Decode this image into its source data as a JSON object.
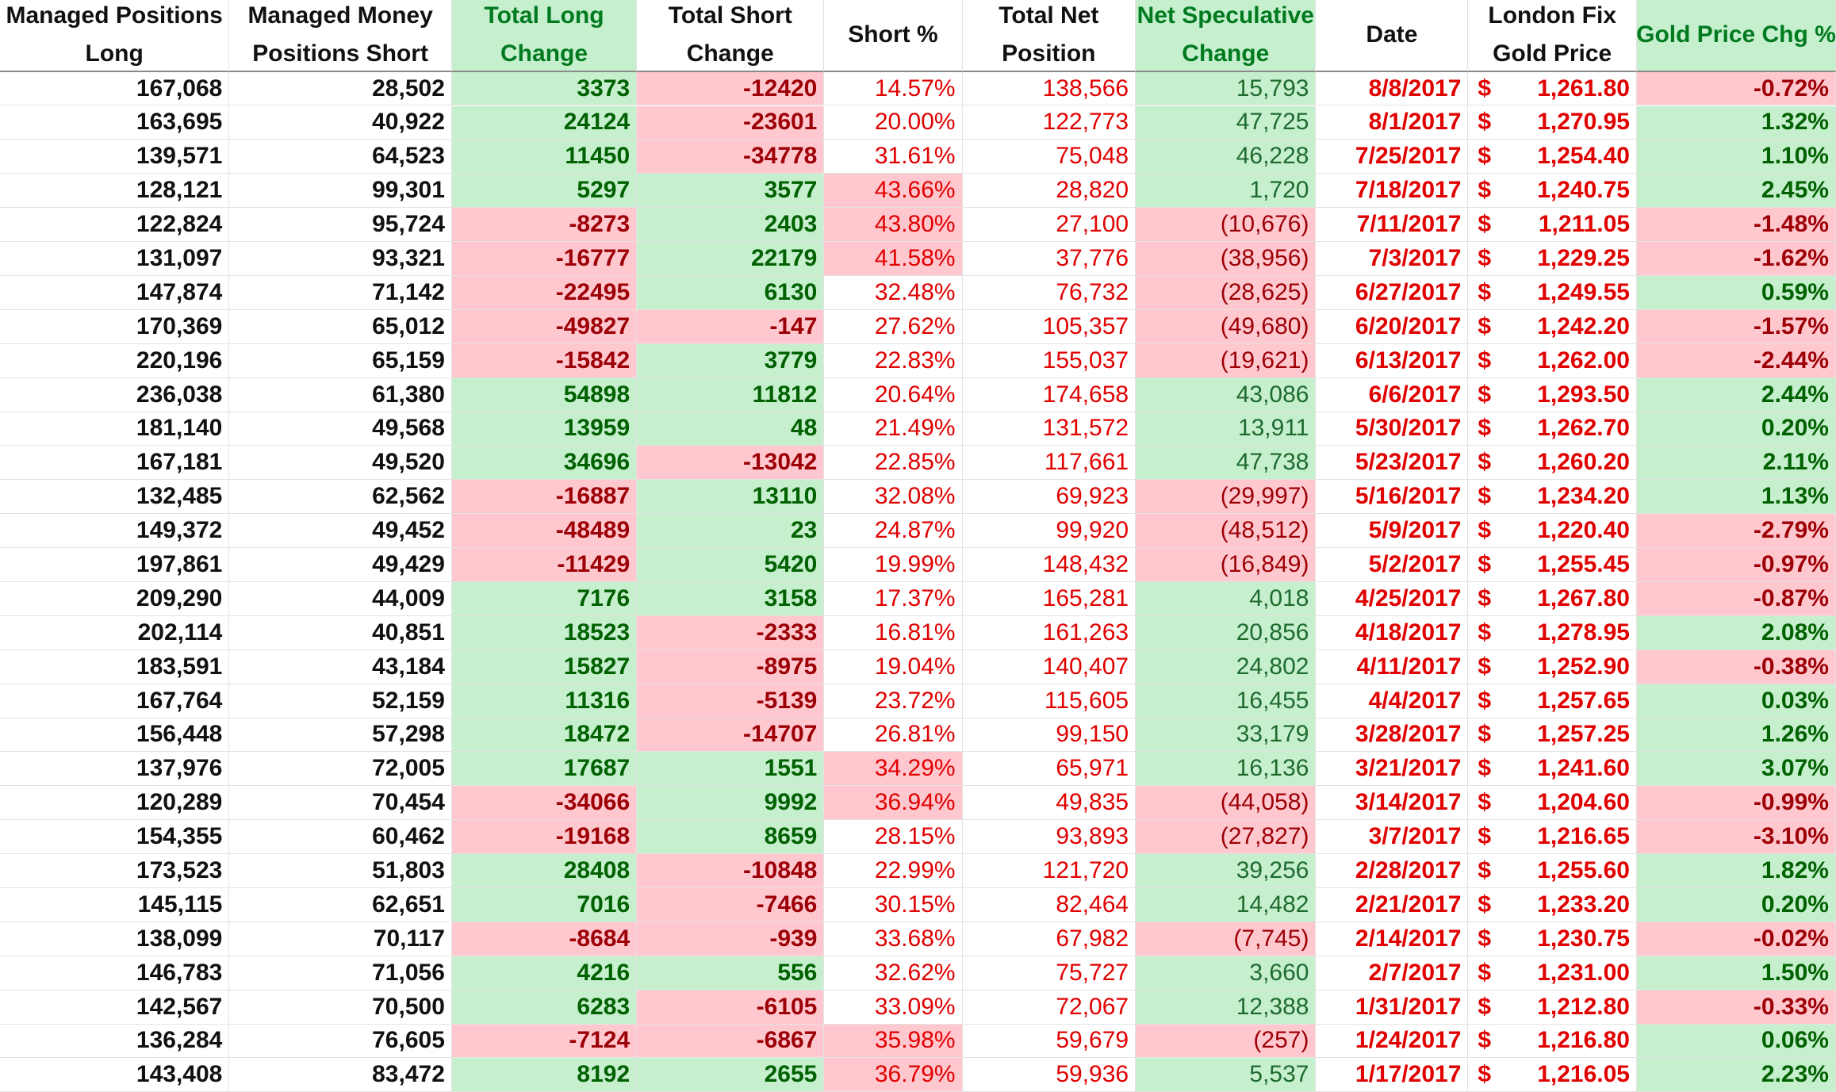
{
  "headers": [
    [
      "Managed Positions",
      "Long"
    ],
    [
      "Managed Money",
      "Positions Short"
    ],
    [
      "Total Long",
      "Change"
    ],
    [
      "Total Short",
      "Change"
    ],
    [
      "Short %"
    ],
    [
      "Total Net",
      "Position"
    ],
    [
      "Net Speculative",
      "Change"
    ],
    [
      "Date"
    ],
    [
      "London Fix",
      "Gold Price"
    ],
    [
      "Gold Price Chg %"
    ]
  ],
  "header_green": [
    false,
    false,
    true,
    false,
    false,
    false,
    true,
    false,
    false,
    true
  ],
  "currency_symbol": "$",
  "colors": {
    "green_fill": "#c6efce",
    "green_text": "#006100",
    "red_fill": "#ffc7ce",
    "red_text": "#9c0006",
    "red_font": "#e10000"
  },
  "rows": [
    {
      "long": "167,068",
      "short": "28,502",
      "long_chg": "3373",
      "short_chg": "-12420",
      "short_pct": "14.57%",
      "net": "138,566",
      "spec_chg": "15,793",
      "date": "8/8/2017",
      "price": "1,261.80",
      "price_chg": "-0.72%",
      "pct_hl": false
    },
    {
      "long": "163,695",
      "short": "40,922",
      "long_chg": "24124",
      "short_chg": "-23601",
      "short_pct": "20.00%",
      "net": "122,773",
      "spec_chg": "47,725",
      "date": "8/1/2017",
      "price": "1,270.95",
      "price_chg": "1.32%",
      "pct_hl": false
    },
    {
      "long": "139,571",
      "short": "64,523",
      "long_chg": "11450",
      "short_chg": "-34778",
      "short_pct": "31.61%",
      "net": "75,048",
      "spec_chg": "46,228",
      "date": "7/25/2017",
      "price": "1,254.40",
      "price_chg": "1.10%",
      "pct_hl": false
    },
    {
      "long": "128,121",
      "short": "99,301",
      "long_chg": "5297",
      "short_chg": "3577",
      "short_pct": "43.66%",
      "net": "28,820",
      "spec_chg": "1,720",
      "date": "7/18/2017",
      "price": "1,240.75",
      "price_chg": "2.45%",
      "pct_hl": true
    },
    {
      "long": "122,824",
      "short": "95,724",
      "long_chg": "-8273",
      "short_chg": "2403",
      "short_pct": "43.80%",
      "net": "27,100",
      "spec_chg": "(10,676)",
      "date": "7/11/2017",
      "price": "1,211.05",
      "price_chg": "-1.48%",
      "pct_hl": true
    },
    {
      "long": "131,097",
      "short": "93,321",
      "long_chg": "-16777",
      "short_chg": "22179",
      "short_pct": "41.58%",
      "net": "37,776",
      "spec_chg": "(38,956)",
      "date": "7/3/2017",
      "price": "1,229.25",
      "price_chg": "-1.62%",
      "pct_hl": true
    },
    {
      "long": "147,874",
      "short": "71,142",
      "long_chg": "-22495",
      "short_chg": "6130",
      "short_pct": "32.48%",
      "net": "76,732",
      "spec_chg": "(28,625)",
      "date": "6/27/2017",
      "price": "1,249.55",
      "price_chg": "0.59%",
      "pct_hl": false
    },
    {
      "long": "170,369",
      "short": "65,012",
      "long_chg": "-49827",
      "short_chg": "-147",
      "short_pct": "27.62%",
      "net": "105,357",
      "spec_chg": "(49,680)",
      "date": "6/20/2017",
      "price": "1,242.20",
      "price_chg": "-1.57%",
      "pct_hl": false
    },
    {
      "long": "220,196",
      "short": "65,159",
      "long_chg": "-15842",
      "short_chg": "3779",
      "short_pct": "22.83%",
      "net": "155,037",
      "spec_chg": "(19,621)",
      "date": "6/13/2017",
      "price": "1,262.00",
      "price_chg": "-2.44%",
      "pct_hl": false
    },
    {
      "long": "236,038",
      "short": "61,380",
      "long_chg": "54898",
      "short_chg": "11812",
      "short_pct": "20.64%",
      "net": "174,658",
      "spec_chg": "43,086",
      "date": "6/6/2017",
      "price": "1,293.50",
      "price_chg": "2.44%",
      "pct_hl": false
    },
    {
      "long": "181,140",
      "short": "49,568",
      "long_chg": "13959",
      "short_chg": "48",
      "short_pct": "21.49%",
      "net": "131,572",
      "spec_chg": "13,911",
      "date": "5/30/2017",
      "price": "1,262.70",
      "price_chg": "0.20%",
      "pct_hl": false
    },
    {
      "long": "167,181",
      "short": "49,520",
      "long_chg": "34696",
      "short_chg": "-13042",
      "short_pct": "22.85%",
      "net": "117,661",
      "spec_chg": "47,738",
      "date": "5/23/2017",
      "price": "1,260.20",
      "price_chg": "2.11%",
      "pct_hl": false
    },
    {
      "long": "132,485",
      "short": "62,562",
      "long_chg": "-16887",
      "short_chg": "13110",
      "short_pct": "32.08%",
      "net": "69,923",
      "spec_chg": "(29,997)",
      "date": "5/16/2017",
      "price": "1,234.20",
      "price_chg": "1.13%",
      "pct_hl": false
    },
    {
      "long": "149,372",
      "short": "49,452",
      "long_chg": "-48489",
      "short_chg": "23",
      "short_pct": "24.87%",
      "net": "99,920",
      "spec_chg": "(48,512)",
      "date": "5/9/2017",
      "price": "1,220.40",
      "price_chg": "-2.79%",
      "pct_hl": false
    },
    {
      "long": "197,861",
      "short": "49,429",
      "long_chg": "-11429",
      "short_chg": "5420",
      "short_pct": "19.99%",
      "net": "148,432",
      "spec_chg": "(16,849)",
      "date": "5/2/2017",
      "price": "1,255.45",
      "price_chg": "-0.97%",
      "pct_hl": false
    },
    {
      "long": "209,290",
      "short": "44,009",
      "long_chg": "7176",
      "short_chg": "3158",
      "short_pct": "17.37%",
      "net": "165,281",
      "spec_chg": "4,018",
      "date": "4/25/2017",
      "price": "1,267.80",
      "price_chg": "-0.87%",
      "pct_hl": false
    },
    {
      "long": "202,114",
      "short": "40,851",
      "long_chg": "18523",
      "short_chg": "-2333",
      "short_pct": "16.81%",
      "net": "161,263",
      "spec_chg": "20,856",
      "date": "4/18/2017",
      "price": "1,278.95",
      "price_chg": "2.08%",
      "pct_hl": false
    },
    {
      "long": "183,591",
      "short": "43,184",
      "long_chg": "15827",
      "short_chg": "-8975",
      "short_pct": "19.04%",
      "net": "140,407",
      "spec_chg": "24,802",
      "date": "4/11/2017",
      "price": "1,252.90",
      "price_chg": "-0.38%",
      "pct_hl": false
    },
    {
      "long": "167,764",
      "short": "52,159",
      "long_chg": "11316",
      "short_chg": "-5139",
      "short_pct": "23.72%",
      "net": "115,605",
      "spec_chg": "16,455",
      "date": "4/4/2017",
      "price": "1,257.65",
      "price_chg": "0.03%",
      "pct_hl": false
    },
    {
      "long": "156,448",
      "short": "57,298",
      "long_chg": "18472",
      "short_chg": "-14707",
      "short_pct": "26.81%",
      "net": "99,150",
      "spec_chg": "33,179",
      "date": "3/28/2017",
      "price": "1,257.25",
      "price_chg": "1.26%",
      "pct_hl": false
    },
    {
      "long": "137,976",
      "short": "72,005",
      "long_chg": "17687",
      "short_chg": "1551",
      "short_pct": "34.29%",
      "net": "65,971",
      "spec_chg": "16,136",
      "date": "3/21/2017",
      "price": "1,241.60",
      "price_chg": "3.07%",
      "pct_hl": true
    },
    {
      "long": "120,289",
      "short": "70,454",
      "long_chg": "-34066",
      "short_chg": "9992",
      "short_pct": "36.94%",
      "net": "49,835",
      "spec_chg": "(44,058)",
      "date": "3/14/2017",
      "price": "1,204.60",
      "price_chg": "-0.99%",
      "pct_hl": true
    },
    {
      "long": "154,355",
      "short": "60,462",
      "long_chg": "-19168",
      "short_chg": "8659",
      "short_pct": "28.15%",
      "net": "93,893",
      "spec_chg": "(27,827)",
      "date": "3/7/2017",
      "price": "1,216.65",
      "price_chg": "-3.10%",
      "pct_hl": false
    },
    {
      "long": "173,523",
      "short": "51,803",
      "long_chg": "28408",
      "short_chg": "-10848",
      "short_pct": "22.99%",
      "net": "121,720",
      "spec_chg": "39,256",
      "date": "2/28/2017",
      "price": "1,255.60",
      "price_chg": "1.82%",
      "pct_hl": false
    },
    {
      "long": "145,115",
      "short": "62,651",
      "long_chg": "7016",
      "short_chg": "-7466",
      "short_pct": "30.15%",
      "net": "82,464",
      "spec_chg": "14,482",
      "date": "2/21/2017",
      "price": "1,233.20",
      "price_chg": "0.20%",
      "pct_hl": false
    },
    {
      "long": "138,099",
      "short": "70,117",
      "long_chg": "-8684",
      "short_chg": "-939",
      "short_pct": "33.68%",
      "net": "67,982",
      "spec_chg": "(7,745)",
      "date": "2/14/2017",
      "price": "1,230.75",
      "price_chg": "-0.02%",
      "pct_hl": false
    },
    {
      "long": "146,783",
      "short": "71,056",
      "long_chg": "4216",
      "short_chg": "556",
      "short_pct": "32.62%",
      "net": "75,727",
      "spec_chg": "3,660",
      "date": "2/7/2017",
      "price": "1,231.00",
      "price_chg": "1.50%",
      "pct_hl": false
    },
    {
      "long": "142,567",
      "short": "70,500",
      "long_chg": "6283",
      "short_chg": "-6105",
      "short_pct": "33.09%",
      "net": "72,067",
      "spec_chg": "12,388",
      "date": "1/31/2017",
      "price": "1,212.80",
      "price_chg": "-0.33%",
      "pct_hl": false
    },
    {
      "long": "136,284",
      "short": "76,605",
      "long_chg": "-7124",
      "short_chg": "-6867",
      "short_pct": "35.98%",
      "net": "59,679",
      "spec_chg": "(257)",
      "date": "1/24/2017",
      "price": "1,216.80",
      "price_chg": "0.06%",
      "pct_hl": true
    },
    {
      "long": "143,408",
      "short": "83,472",
      "long_chg": "8192",
      "short_chg": "2655",
      "short_pct": "36.79%",
      "net": "59,936",
      "spec_chg": "5,537",
      "date": "1/17/2017",
      "price": "1,216.05",
      "price_chg": "2.23%",
      "pct_hl": true
    }
  ]
}
